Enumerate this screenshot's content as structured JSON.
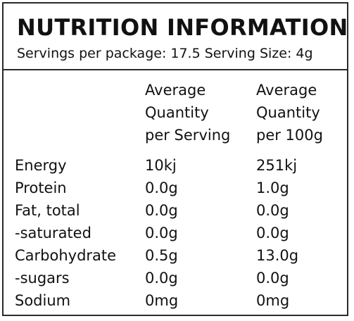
{
  "title": "NUTRITION INFORMATION",
  "subtitle": "Servings per package: 17.5 Serving Size: 4g",
  "columns": {
    "per_serving": [
      "Average",
      "Quantity",
      "per Serving"
    ],
    "per_100g": [
      "Average",
      "Quantity",
      "per 100g"
    ]
  },
  "rows": [
    {
      "label": "Energy",
      "per_serving": "10kj",
      "per_100g": "251kj"
    },
    {
      "label": "Protein",
      "per_serving": "0.0g",
      "per_100g": "1.0g"
    },
    {
      "label": "Fat, total",
      "per_serving": "0.0g",
      "per_100g": "0.0g"
    },
    {
      "label": "-saturated",
      "per_serving": "0.0g",
      "per_100g": "0.0g"
    },
    {
      "label": "Carbohydrate",
      "per_serving": "0.5g",
      "per_100g": "13.0g"
    },
    {
      "label": "-sugars",
      "per_serving": "0.0g",
      "per_100g": "0.0g"
    },
    {
      "label": "Sodium",
      "per_serving": "0mg",
      "per_100g": "0mg"
    }
  ]
}
